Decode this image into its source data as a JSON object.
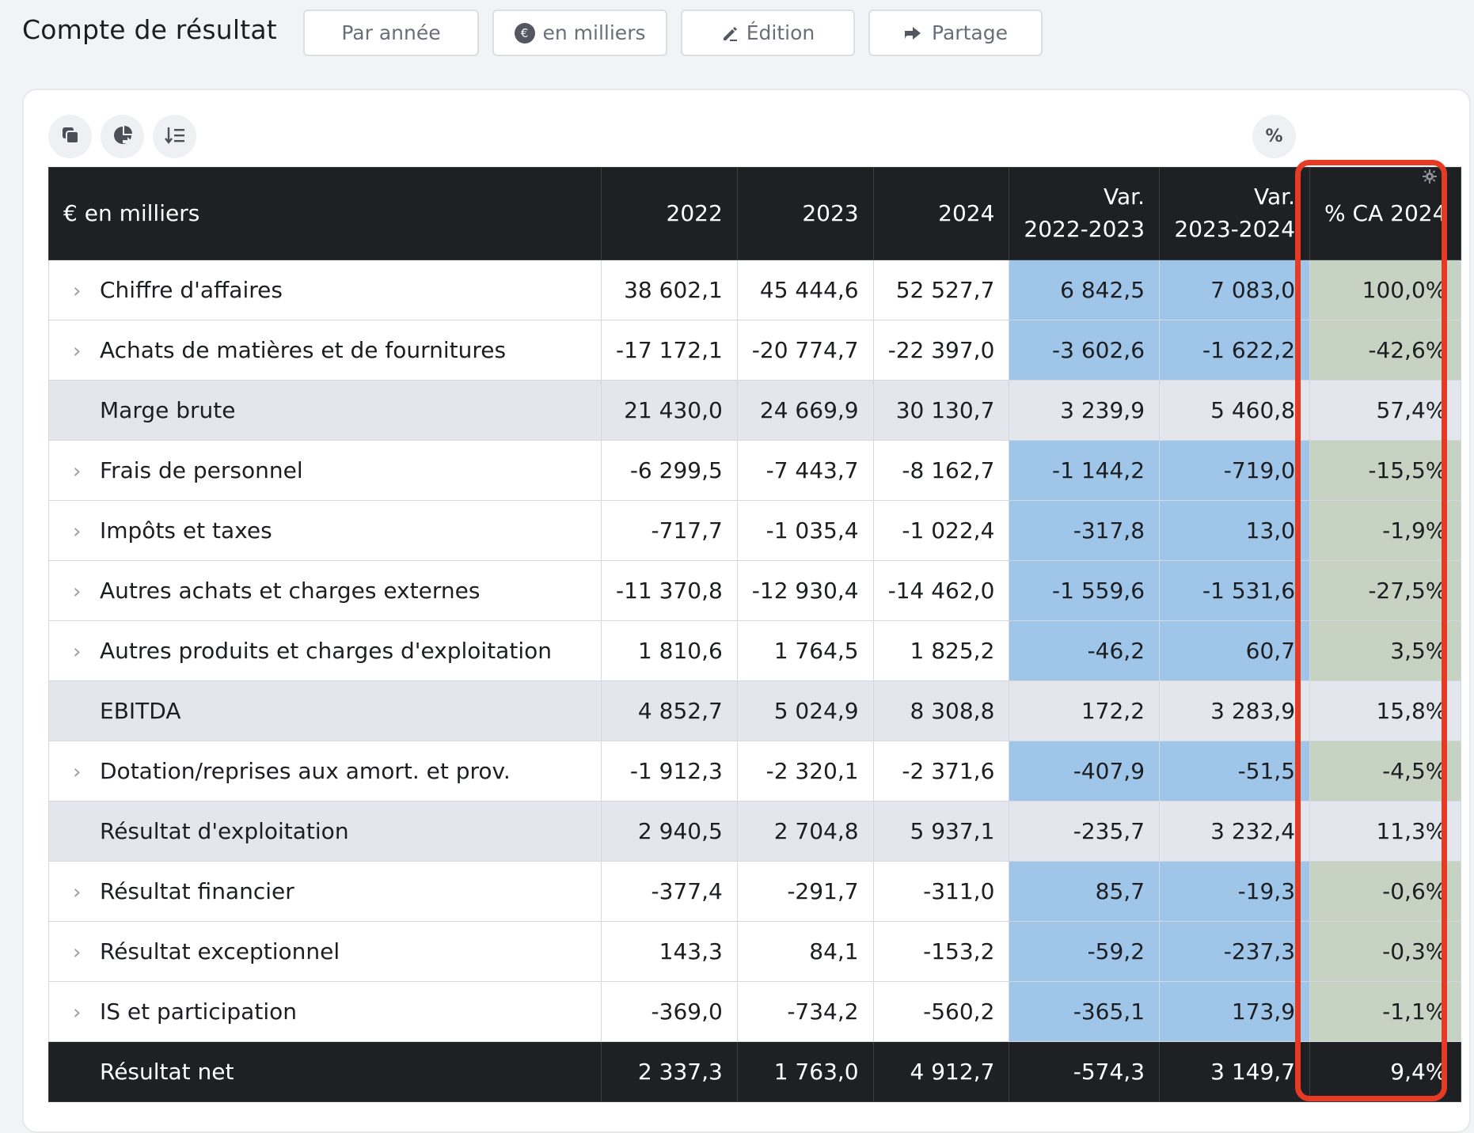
{
  "header": {
    "title": "Compte de résultat",
    "buttons": {
      "period": "Par année",
      "units": "en milliers",
      "units_badge": "€",
      "edit": "Édition",
      "share": "Partage"
    }
  },
  "toolbar": {
    "icons": [
      "copy-icon",
      "chart-export-icon",
      "sort-icon"
    ],
    "percent_label": "%"
  },
  "table": {
    "columns": [
      "€ en milliers",
      "2022",
      "2023",
      "2024",
      "Var.",
      "2022-2023",
      "Var.",
      "2023-2024",
      "% CA 2024"
    ],
    "header": {
      "label": "€ en milliers",
      "y2022": "2022",
      "y2023": "2023",
      "y2024": "2024",
      "var1_line1": "Var.",
      "var1_line2": "2022-2023",
      "var2_line1": "Var.",
      "var2_line2": "2023-2024",
      "pct": "% CA 2024"
    },
    "rows": [
      {
        "label": "Chiffre d'affaires",
        "expandable": true,
        "type": "detail",
        "v2022": "38 602,1",
        "v2023": "45 444,6",
        "v2024": "52 527,7",
        "var1": "6 842,5",
        "var2": "7 083,0",
        "pct": "100,0%"
      },
      {
        "label": "Achats de matières et de fournitures",
        "expandable": true,
        "type": "detail",
        "v2022": "-17 172,1",
        "v2023": "-20 774,7",
        "v2024": "-22 397,0",
        "var1": "-3 602,6",
        "var2": "-1 622,2",
        "pct": "-42,6%"
      },
      {
        "label": "Marge brute",
        "expandable": false,
        "type": "subtotal",
        "v2022": "21 430,0",
        "v2023": "24 669,9",
        "v2024": "30 130,7",
        "var1": "3 239,9",
        "var2": "5 460,8",
        "pct": "57,4%"
      },
      {
        "label": "Frais de personnel",
        "expandable": true,
        "type": "detail",
        "v2022": "-6 299,5",
        "v2023": "-7 443,7",
        "v2024": "-8 162,7",
        "var1": "-1 144,2",
        "var2": "-719,0",
        "pct": "-15,5%"
      },
      {
        "label": "Impôts et taxes",
        "expandable": true,
        "type": "detail",
        "v2022": "-717,7",
        "v2023": "-1 035,4",
        "v2024": "-1 022,4",
        "var1": "-317,8",
        "var2": "13,0",
        "pct": "-1,9%"
      },
      {
        "label": "Autres achats et charges externes",
        "expandable": true,
        "type": "detail",
        "v2022": "-11 370,8",
        "v2023": "-12 930,4",
        "v2024": "-14 462,0",
        "var1": "-1 559,6",
        "var2": "-1 531,6",
        "pct": "-27,5%"
      },
      {
        "label": "Autres produits et charges d'exploitation",
        "expandable": true,
        "type": "detail",
        "v2022": "1 810,6",
        "v2023": "1 764,5",
        "v2024": "1 825,2",
        "var1": "-46,2",
        "var2": "60,7",
        "pct": "3,5%"
      },
      {
        "label": "EBITDA",
        "expandable": false,
        "type": "subtotal",
        "v2022": "4 852,7",
        "v2023": "5 024,9",
        "v2024": "8 308,8",
        "var1": "172,2",
        "var2": "3 283,9",
        "pct": "15,8%"
      },
      {
        "label": "Dotation/reprises aux amort. et prov.",
        "expandable": true,
        "type": "detail",
        "v2022": "-1 912,3",
        "v2023": "-2 320,1",
        "v2024": "-2 371,6",
        "var1": "-407,9",
        "var2": "-51,5",
        "pct": "-4,5%"
      },
      {
        "label": "Résultat d'exploitation",
        "expandable": false,
        "type": "subtotal",
        "v2022": "2 940,5",
        "v2023": "2 704,8",
        "v2024": "5 937,1",
        "var1": "-235,7",
        "var2": "3 232,4",
        "pct": "11,3%"
      },
      {
        "label": "Résultat financier",
        "expandable": true,
        "type": "detail",
        "v2022": "-377,4",
        "v2023": "-291,7",
        "v2024": "-311,0",
        "var1": "85,7",
        "var2": "-19,3",
        "pct": "-0,6%"
      },
      {
        "label": "Résultat exceptionnel",
        "expandable": true,
        "type": "detail",
        "v2022": "143,3",
        "v2023": "84,1",
        "v2024": "-153,2",
        "var1": "-59,2",
        "var2": "-237,3",
        "pct": "-0,3%"
      },
      {
        "label": "IS et participation",
        "expandable": true,
        "type": "detail",
        "v2022": "-369,0",
        "v2023": "-734,2",
        "v2024": "-560,2",
        "var1": "-365,1",
        "var2": "173,9",
        "pct": "-1,1%"
      },
      {
        "label": "Résultat net",
        "expandable": false,
        "type": "total",
        "v2022": "2 337,3",
        "v2023": "1 763,0",
        "v2024": "4 912,7",
        "var1": "-574,3",
        "var2": "3 149,7",
        "pct": "9,4%"
      }
    ]
  },
  "colors": {
    "header_bg": "#1e2024",
    "variance_fill": "#9fc5e8",
    "percent_fill": "#c6d3c3",
    "subtotal_fill": "#e4e6ed",
    "highlight_border": "#e63a25"
  }
}
